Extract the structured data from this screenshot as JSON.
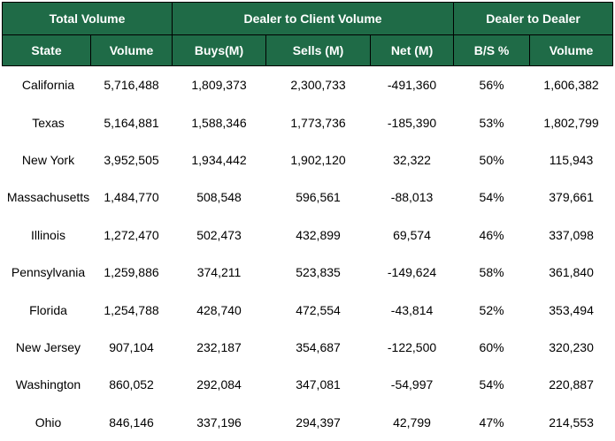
{
  "groups": [
    {
      "label": "Total Volume",
      "span": 2
    },
    {
      "label": "Dealer to Client Volume",
      "span": 3
    },
    {
      "label": "Dealer to Dealer",
      "span": 2
    }
  ],
  "columns": [
    "State",
    "Volume",
    "Buys(M)",
    "Sells (M)",
    "Net (M)",
    "B/S %",
    "Volume"
  ],
  "rows": [
    {
      "state": "California",
      "volume": "5,716,488",
      "buys": "1,809,373",
      "sells": "2,300,733",
      "net": "-491,360",
      "bs": "56%",
      "d2d": "1,606,382"
    },
    {
      "state": "Texas",
      "volume": "5,164,881",
      "buys": "1,588,346",
      "sells": "1,773,736",
      "net": "-185,390",
      "bs": "53%",
      "d2d": "1,802,799"
    },
    {
      "state": "New York",
      "volume": "3,952,505",
      "buys": "1,934,442",
      "sells": "1,902,120",
      "net": "32,322",
      "bs": "50%",
      "d2d": "115,943"
    },
    {
      "state": "Massachusetts",
      "volume": "1,484,770",
      "buys": "508,548",
      "sells": "596,561",
      "net": "-88,013",
      "bs": "54%",
      "d2d": "379,661"
    },
    {
      "state": "Illinois",
      "volume": "1,272,470",
      "buys": "502,473",
      "sells": "432,899",
      "net": "69,574",
      "bs": "46%",
      "d2d": "337,098"
    },
    {
      "state": "Pennsylvania",
      "volume": "1,259,886",
      "buys": "374,211",
      "sells": "523,835",
      "net": "-149,624",
      "bs": "58%",
      "d2d": "361,840"
    },
    {
      "state": "Florida",
      "volume": "1,254,788",
      "buys": "428,740",
      "sells": "472,554",
      "net": "-43,814",
      "bs": "52%",
      "d2d": "353,494"
    },
    {
      "state": "New Jersey",
      "volume": "907,104",
      "buys": "232,187",
      "sells": "354,687",
      "net": "-122,500",
      "bs": "60%",
      "d2d": "320,230"
    },
    {
      "state": "Washington",
      "volume": "860,052",
      "buys": "292,084",
      "sells": "347,081",
      "net": "-54,997",
      "bs": "54%",
      "d2d": "220,887"
    },
    {
      "state": "Ohio",
      "volume": "846,146",
      "buys": "337,196",
      "sells": "294,397",
      "net": "42,799",
      "bs": "47%",
      "d2d": "214,553"
    }
  ],
  "colors": {
    "header_bg": "#1f6b47",
    "header_text": "#ffffff"
  }
}
